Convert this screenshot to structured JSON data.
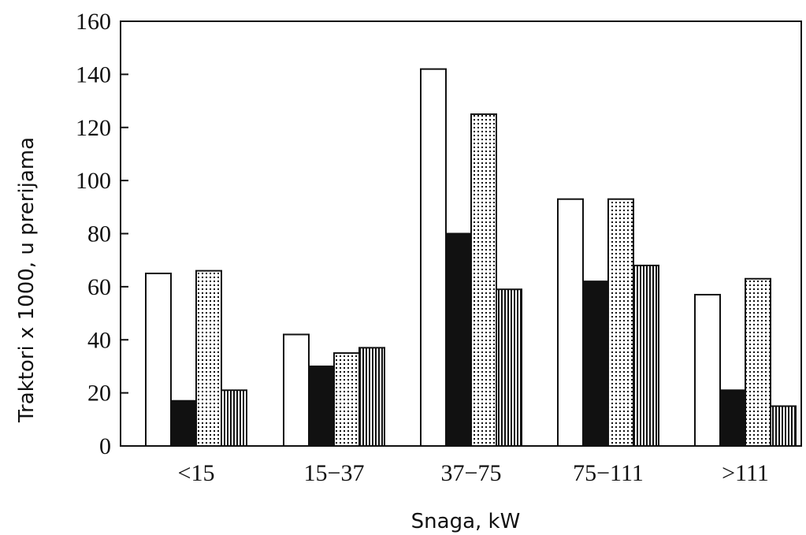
{
  "chart_data": {
    "type": "bar",
    "title": "",
    "xlabel": "Snaga, kW",
    "ylabel": "Traktori x 1000, u prerijama",
    "categories": [
      "<15",
      "15−37",
      "37−75",
      "75−111",
      ">111"
    ],
    "ylim": [
      0,
      160
    ],
    "yticks": [
      0,
      20,
      40,
      60,
      80,
      100,
      120,
      140,
      160
    ],
    "grid": false,
    "legend": "none",
    "series": [
      {
        "values": [
          65,
          42,
          142,
          93,
          57
        ],
        "pattern": "white",
        "color": "#ffffff"
      },
      {
        "values": [
          17,
          30,
          80,
          62,
          21
        ],
        "pattern": "solid",
        "color": "#111111"
      },
      {
        "values": [
          66,
          35,
          125,
          93,
          63
        ],
        "pattern": "dots",
        "color": "#111111"
      },
      {
        "values": [
          21,
          37,
          59,
          68,
          15
        ],
        "pattern": "vertical-stripes",
        "color": "#111111"
      }
    ]
  }
}
